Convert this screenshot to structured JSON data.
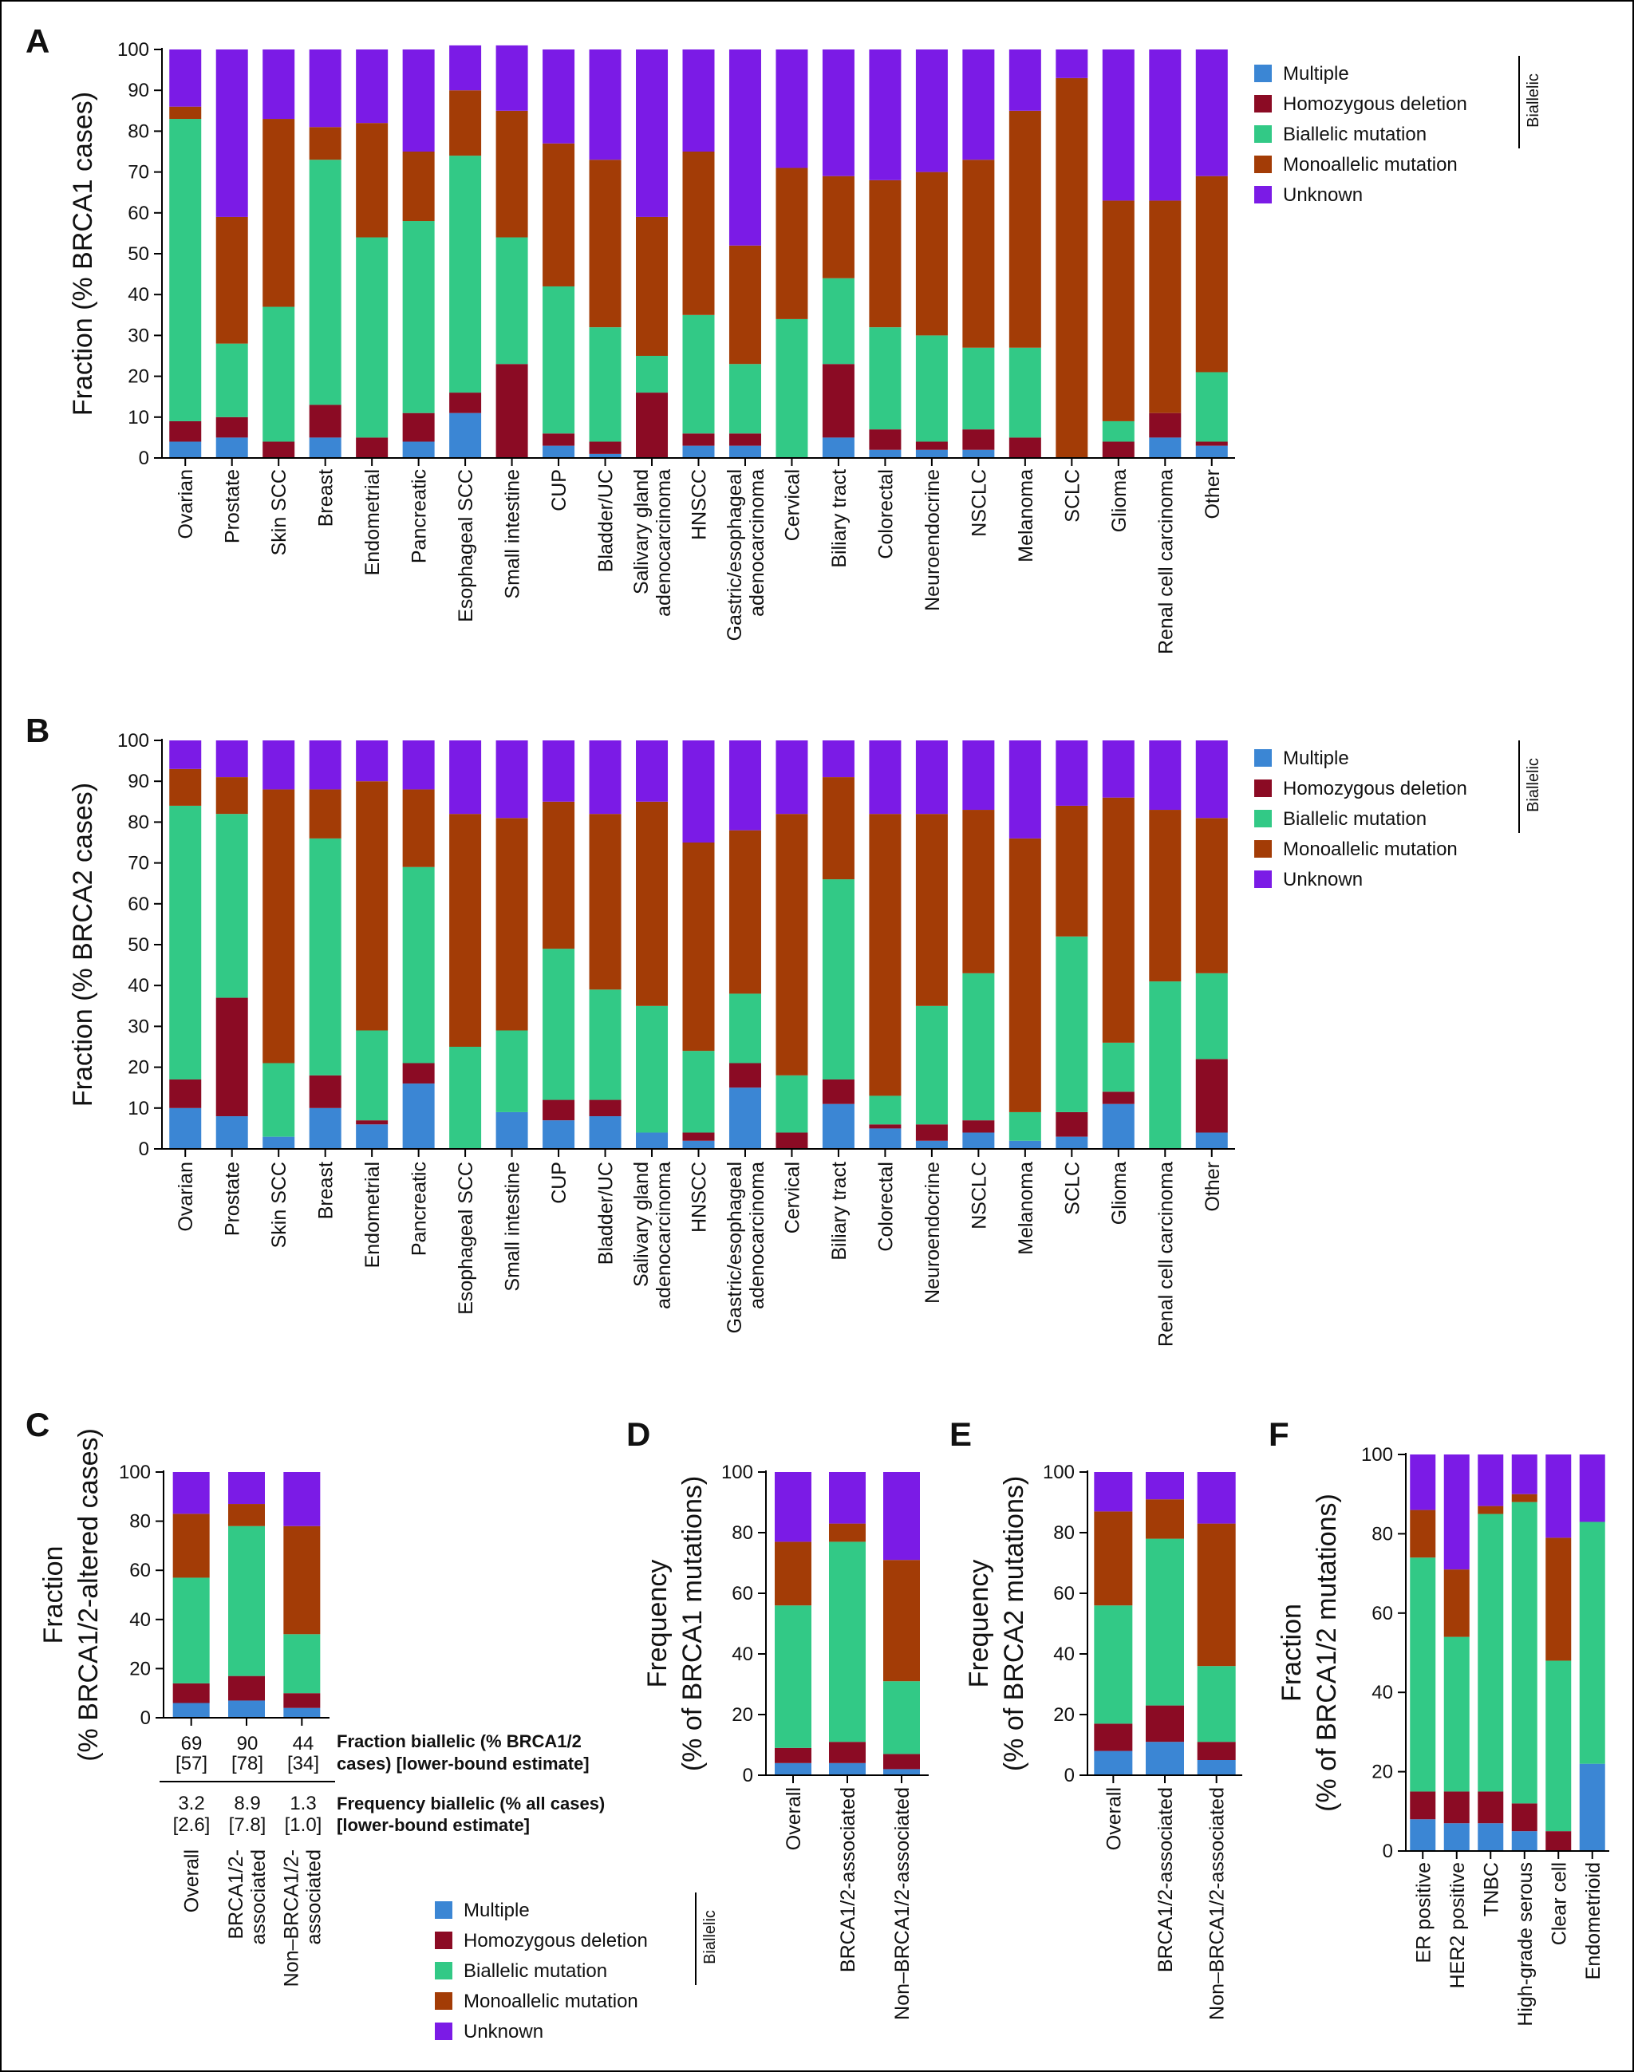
{
  "colors": {
    "multiple": "#3b86d4",
    "homozygous_deletion": "#8b0b24",
    "biallelic_mutation": "#32c986",
    "monoallelic_mutation": "#a33c06",
    "unknown": "#7b1be6"
  },
  "legend": {
    "items": [
      "Multiple",
      "Homozygous deletion",
      "Biallelic mutation",
      "Monoallelic mutation",
      "Unknown"
    ],
    "biallelic_label": "Biallelic"
  },
  "panel_c_table": {
    "fraction_label_1": "Fraction biallelic (% BRCA1/2",
    "fraction_label_2": "cases) [lower-bound estimate]",
    "frequency_label_1": "Frequency biallelic (% all cases)",
    "frequency_label_2": "[lower-bound estimate]",
    "fraction_values": [
      "69",
      "90",
      "44"
    ],
    "fraction_lower": [
      "[57]",
      "[78]",
      "[34]"
    ],
    "frequency_values": [
      "3.2",
      "8.9",
      "1.3"
    ],
    "frequency_lower": [
      "[2.6]",
      "[7.8]",
      "[1.0]"
    ]
  },
  "chart_data": [
    {
      "panel": "A",
      "type": "bar",
      "stacked": true,
      "ylabel": "Fraction (% BRCA1 cases)",
      "ylim": [
        0,
        100
      ],
      "yticks": [
        0,
        10,
        20,
        30,
        40,
        50,
        60,
        70,
        80,
        90,
        100
      ],
      "categories": [
        "Ovarian",
        "Prostate",
        "Skin SCC",
        "Breast",
        "Endometrial",
        "Pancreatic",
        "Esophageal SCC",
        "Small intestine",
        "CUP",
        "Bladder/UC",
        "Salivary gland adenocarcinoma",
        "HNSCC",
        "Gastric/esophageal adenocarcinoma",
        "Cervical",
        "Biliary tract",
        "Colorectal",
        "Neuroendocrine",
        "NSCLC",
        "Melanoma",
        "SCLC",
        "Glioma",
        "Renal cell carcinoma",
        "Other"
      ],
      "series": [
        {
          "name": "Multiple",
          "values": [
            4,
            5,
            0,
            5,
            0,
            4,
            11,
            0,
            3,
            1,
            0,
            3,
            3,
            0,
            5,
            2,
            2,
            2,
            0,
            0,
            0,
            5,
            3
          ]
        },
        {
          "name": "Homozygous deletion",
          "values": [
            5,
            5,
            4,
            8,
            5,
            7,
            5,
            23,
            3,
            3,
            16,
            3,
            3,
            0,
            18,
            5,
            2,
            5,
            5,
            0,
            4,
            6,
            1
          ]
        },
        {
          "name": "Biallelic mutation",
          "values": [
            74,
            18,
            33,
            60,
            49,
            47,
            58,
            31,
            36,
            28,
            9,
            29,
            17,
            34,
            21,
            25,
            26,
            20,
            22,
            0,
            5,
            0,
            17
          ]
        },
        {
          "name": "Monoallelic mutation",
          "values": [
            3,
            31,
            46,
            8,
            28,
            17,
            16,
            31,
            35,
            41,
            34,
            40,
            29,
            37,
            25,
            36,
            40,
            46,
            58,
            93,
            54,
            52,
            48
          ]
        },
        {
          "name": "Unknown",
          "values": [
            14,
            41,
            17,
            19,
            18,
            25,
            11,
            16,
            23,
            27,
            41,
            25,
            48,
            29,
            31,
            32,
            30,
            27,
            15,
            7,
            37,
            37,
            31
          ]
        }
      ]
    },
    {
      "panel": "B",
      "type": "bar",
      "stacked": true,
      "ylabel": "Fraction (% BRCA2 cases)",
      "ylim": [
        0,
        100
      ],
      "yticks": [
        0,
        10,
        20,
        30,
        40,
        50,
        60,
        70,
        80,
        90,
        100
      ],
      "categories": [
        "Ovarian",
        "Prostate",
        "Skin SCC",
        "Breast",
        "Endometrial",
        "Pancreatic",
        "Esophageal SCC",
        "Small intestine",
        "CUP",
        "Bladder/UC",
        "Salivary gland adenocarcinoma",
        "HNSCC",
        "Gastric/esophageal adenocarcinoma",
        "Cervical",
        "Biliary tract",
        "Colorectal",
        "Neuroendocrine",
        "NSCLC",
        "Melanoma",
        "SCLC",
        "Glioma",
        "Renal cell carcinoma",
        "Other"
      ],
      "series": [
        {
          "name": "Multiple",
          "values": [
            10,
            8,
            3,
            10,
            6,
            16,
            0,
            9,
            7,
            8,
            4,
            2,
            15,
            0,
            11,
            5,
            2,
            4,
            2,
            3,
            11,
            0,
            4
          ]
        },
        {
          "name": "Homozygous deletion",
          "values": [
            7,
            29,
            0,
            8,
            1,
            5,
            0,
            0,
            5,
            4,
            0,
            2,
            6,
            4,
            6,
            1,
            4,
            3,
            0,
            6,
            3,
            0,
            18
          ]
        },
        {
          "name": "Biallelic mutation",
          "values": [
            67,
            45,
            18,
            58,
            22,
            48,
            25,
            20,
            37,
            27,
            31,
            20,
            17,
            14,
            49,
            7,
            29,
            36,
            7,
            43,
            12,
            41,
            21
          ]
        },
        {
          "name": "Monoallelic mutation",
          "values": [
            9,
            9,
            67,
            12,
            61,
            19,
            57,
            52,
            36,
            43,
            50,
            51,
            40,
            64,
            25,
            69,
            47,
            40,
            67,
            32,
            60,
            42,
            38
          ]
        },
        {
          "name": "Unknown",
          "values": [
            7,
            9,
            12,
            12,
            10,
            12,
            18,
            19,
            15,
            18,
            15,
            25,
            22,
            18,
            9,
            18,
            18,
            17,
            24,
            16,
            14,
            17,
            19
          ]
        }
      ]
    },
    {
      "panel": "C",
      "type": "bar",
      "stacked": true,
      "ylabel": [
        "Fraction",
        "(% BRCA1/2-altered cases)"
      ],
      "ylim": [
        0,
        100
      ],
      "yticks": [
        0,
        20,
        40,
        60,
        80,
        100
      ],
      "categories": [
        "Overall",
        "BRCA1/2-associated",
        "Non–BRCA1/2-associated"
      ],
      "category_lines": [
        [
          "Overall"
        ],
        [
          "BRCA1/2-",
          "associated"
        ],
        [
          "Non–BRCA1/2-",
          "associated"
        ]
      ],
      "series": [
        {
          "name": "Multiple",
          "values": [
            6,
            7,
            4
          ]
        },
        {
          "name": "Homozygous deletion",
          "values": [
            8,
            10,
            6
          ]
        },
        {
          "name": "Biallelic mutation",
          "values": [
            43,
            61,
            24
          ]
        },
        {
          "name": "Monoallelic mutation",
          "values": [
            26,
            9,
            44
          ]
        },
        {
          "name": "Unknown",
          "values": [
            17,
            13,
            22
          ]
        }
      ]
    },
    {
      "panel": "D",
      "type": "bar",
      "stacked": true,
      "ylabel": [
        "Frequency",
        "(% of BRCA1 mutations)"
      ],
      "ylim": [
        0,
        100
      ],
      "yticks": [
        0,
        20,
        40,
        60,
        80,
        100
      ],
      "categories": [
        "Overall",
        "BRCA1/2-associated",
        "Non–BRCA1/2-associated"
      ],
      "category_lines": [
        [
          "Overall"
        ],
        [
          "BRCA1/2-associated"
        ],
        [
          "Non–BRCA1/2-associated"
        ]
      ],
      "series": [
        {
          "name": "Multiple",
          "values": [
            4,
            4,
            2
          ]
        },
        {
          "name": "Homozygous deletion",
          "values": [
            5,
            7,
            5
          ]
        },
        {
          "name": "Biallelic mutation",
          "values": [
            47,
            66,
            24
          ]
        },
        {
          "name": "Monoallelic mutation",
          "values": [
            21,
            6,
            40
          ]
        },
        {
          "name": "Unknown",
          "values": [
            23,
            17,
            29
          ]
        }
      ]
    },
    {
      "panel": "E",
      "type": "bar",
      "stacked": true,
      "ylabel": [
        "Frequency",
        "(% of BRCA2 mutations)"
      ],
      "ylim": [
        0,
        100
      ],
      "yticks": [
        0,
        20,
        40,
        60,
        80,
        100
      ],
      "categories": [
        "Overall",
        "BRCA1/2-associated",
        "Non–BRCA1/2-associated"
      ],
      "category_lines": [
        [
          "Overall"
        ],
        [
          "BRCA1/2-associated"
        ],
        [
          "Non–BRCA1/2-associated"
        ]
      ],
      "series": [
        {
          "name": "Multiple",
          "values": [
            8,
            11,
            5
          ]
        },
        {
          "name": "Homozygous deletion",
          "values": [
            9,
            12,
            6
          ]
        },
        {
          "name": "Biallelic mutation",
          "values": [
            39,
            55,
            25
          ]
        },
        {
          "name": "Monoallelic mutation",
          "values": [
            31,
            13,
            47
          ]
        },
        {
          "name": "Unknown",
          "values": [
            13,
            9,
            17
          ]
        }
      ]
    },
    {
      "panel": "F",
      "type": "bar",
      "stacked": true,
      "ylabel": [
        "Fraction",
        "(% of BRCA1/2 mutations)"
      ],
      "ylim": [
        0,
        100
      ],
      "yticks": [
        0,
        20,
        40,
        60,
        80,
        100
      ],
      "categories": [
        "ER positive",
        "HER2 positive",
        "TNBC",
        "High-grade serous",
        "Clear cell",
        "Endometrioid"
      ],
      "category_lines": [
        [
          "ER positive"
        ],
        [
          "HER2 positive"
        ],
        [
          "TNBC"
        ],
        [
          "High-grade serous"
        ],
        [
          "Clear cell"
        ],
        [
          "Endometrioid"
        ]
      ],
      "series": [
        {
          "name": "Multiple",
          "values": [
            8,
            7,
            7,
            5,
            0,
            22
          ]
        },
        {
          "name": "Homozygous deletion",
          "values": [
            7,
            8,
            8,
            7,
            5,
            0
          ]
        },
        {
          "name": "Biallelic mutation",
          "values": [
            59,
            39,
            70,
            76,
            43,
            61
          ]
        },
        {
          "name": "Monoallelic mutation",
          "values": [
            12,
            17,
            2,
            2,
            31,
            0
          ]
        },
        {
          "name": "Unknown",
          "values": [
            14,
            29,
            13,
            10,
            21,
            17
          ]
        }
      ]
    }
  ]
}
